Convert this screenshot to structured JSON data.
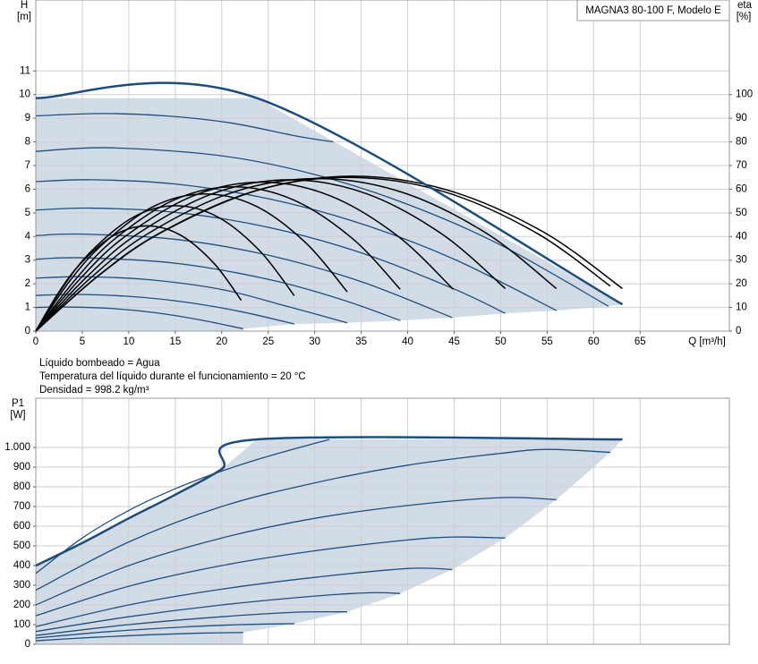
{
  "notes": [
    "Líquido bombeado = Agua",
    "Temperatura del líquido durante el funcionamiento = 20 °C",
    "Densidad = 998.2 kg/m³"
  ],
  "chart_data": [
    {
      "type": "line",
      "title": "MAGNA3 80-100 F, Modelo E",
      "y_label": "H",
      "y_unit": "[m]",
      "y2_label": "eta",
      "y2_unit": "[%]",
      "x_label": "Q [m³/h]",
      "xlim": [
        0,
        74.6
      ],
      "xticks": [
        0,
        5,
        10,
        15,
        20,
        25,
        30,
        35,
        40,
        45,
        50,
        55,
        60,
        65
      ],
      "ylim": [
        0,
        14
      ],
      "yticks": [
        0,
        1,
        2,
        3,
        4,
        5,
        6,
        7,
        8,
        9,
        10,
        11
      ],
      "y2lim": [
        0,
        140
      ],
      "y2ticks": [
        0,
        10,
        20,
        30,
        40,
        50,
        60,
        70,
        80,
        90,
        100
      ],
      "grid": true,
      "envelope": {
        "color": "#1c4d7c",
        "fill": "#d1dce7",
        "x": [
          0,
          23.8,
          63.1
        ],
        "values": [
          9.85,
          9.85,
          1.13
        ]
      },
      "series": [
        {
          "color": "#1f4f7f",
          "x": [
            0,
            7,
            14,
            21,
            28,
            32
          ],
          "values": [
            9.1,
            9.2,
            9.1,
            8.8,
            8.25,
            8.0
          ]
        },
        {
          "color": "#1f4f7f",
          "x": [
            0,
            8,
            20,
            30,
            40,
            50,
            61.6
          ],
          "values": [
            7.6,
            7.75,
            7.41,
            6.62,
            5.36,
            3.64,
            1.05
          ]
        },
        {
          "color": "#1f4f7f",
          "x": [
            0,
            6,
            15,
            25,
            35,
            45,
            56
          ],
          "values": [
            6.32,
            6.4,
            6.22,
            5.6,
            4.54,
            3.04,
            0.87
          ]
        },
        {
          "color": "#1f4f7f",
          "x": [
            0,
            6,
            15,
            25,
            35,
            45,
            50.5
          ],
          "values": [
            5.12,
            5.2,
            5.02,
            4.39,
            3.31,
            1.78,
            0.75
          ]
        },
        {
          "color": "#1f4f7f",
          "x": [
            0,
            5,
            15,
            25,
            35,
            44.8
          ],
          "values": [
            4.04,
            4.1,
            3.88,
            3.21,
            2.09,
            0.57
          ]
        },
        {
          "color": "#1f4f7f",
          "x": [
            0,
            5,
            15,
            25,
            33,
            39.2
          ],
          "values": [
            3.04,
            3.1,
            2.87,
            2.19,
            1.32,
            0.45
          ]
        },
        {
          "color": "#1f4f7f",
          "x": [
            0,
            5,
            12,
            20,
            27,
            33.5
          ],
          "values": [
            2.24,
            2.3,
            2.18,
            1.76,
            1.05,
            0.35
          ]
        },
        {
          "color": "#1f4f7f",
          "x": [
            0,
            4,
            10,
            16,
            22,
            27.8
          ],
          "values": [
            1.51,
            1.55,
            1.47,
            1.23,
            0.83,
            0.3
          ]
        },
        {
          "color": "#1f4f7f",
          "x": [
            0,
            3,
            8,
            13,
            18,
            22.3
          ],
          "values": [
            1.0,
            1.02,
            0.96,
            0.77,
            0.45,
            0.1
          ]
        },
        {
          "color": "#000000",
          "axis": "y2",
          "x": [
            0,
            2.4,
            4.8,
            8.4,
            12,
            15.6,
            19.2,
            22.1
          ],
          "values": [
            0,
            16,
            28.5,
            40.5,
            44.5,
            40.5,
            28.5,
            13
          ]
        },
        {
          "color": "#000000",
          "axis": "y2",
          "x": [
            0,
            3,
            6,
            10.5,
            15,
            19.6,
            24.1,
            27.8
          ],
          "values": [
            0,
            19.1,
            33.9,
            48.2,
            53,
            48.2,
            33.9,
            15
          ]
        },
        {
          "color": "#000000",
          "axis": "y2",
          "x": [
            0,
            3.6,
            7.3,
            12.7,
            18.2,
            23.7,
            29.1,
            33.5
          ],
          "values": [
            0,
            20.9,
            37.1,
            52.8,
            58,
            52.8,
            37.1,
            16.6
          ]
        },
        {
          "color": "#000000",
          "axis": "y2",
          "x": [
            0,
            4.3,
            8.5,
            14.9,
            21.3,
            27.7,
            34.1,
            39.2
          ],
          "values": [
            0,
            22,
            39,
            55.5,
            61,
            55.5,
            39,
            17.7
          ]
        },
        {
          "color": "#000000",
          "axis": "y2",
          "x": [
            0,
            4.9,
            9.7,
            17,
            24.3,
            31.6,
            38.9,
            44.9
          ],
          "values": [
            0,
            22.7,
            40.3,
            57.3,
            63,
            57.3,
            40.3,
            17.7
          ]
        },
        {
          "color": "#000000",
          "axis": "y2",
          "x": [
            0,
            5.5,
            10.9,
            19.1,
            27.3,
            35.5,
            43.7,
            50.5
          ],
          "values": [
            0,
            23,
            41,
            58.2,
            64,
            58.2,
            41,
            18
          ]
        },
        {
          "color": "#000000",
          "axis": "y2",
          "x": [
            0,
            6.1,
            12.1,
            21.2,
            30.3,
            39.4,
            48.5,
            56
          ],
          "values": [
            0,
            23.2,
            41.3,
            58.7,
            64.5,
            58.7,
            41.3,
            18
          ]
        },
        {
          "color": "#000000",
          "axis": "y2",
          "x": [
            0,
            6.7,
            13.4,
            23.5,
            33.6,
            43.7,
            53.8,
            61.8
          ],
          "values": [
            0,
            23.4,
            41.6,
            59.2,
            65,
            59.2,
            41.6,
            19
          ]
        },
        {
          "color": "#000000",
          "axis": "y2",
          "x": [
            0,
            6.8,
            13.6,
            23.9,
            34.1,
            44.3,
            54.6,
            63.1
          ],
          "values": [
            0,
            23.6,
            41.9,
            59.6,
            65.5,
            59.6,
            41.9,
            18
          ]
        }
      ]
    },
    {
      "type": "line",
      "y_label": "P1",
      "y_unit": "[W]",
      "xlim": [
        0,
        74.6
      ],
      "ylim": [
        0,
        1250
      ],
      "yticks": [
        0,
        100,
        200,
        300,
        400,
        500,
        600,
        700,
        800,
        900,
        {
          "value": 1000,
          "label": "1.000"
        }
      ],
      "grid": true,
      "envelope": {
        "color": "#1c4d7c",
        "fill": "#d1dce7",
        "x": [
          0,
          5,
          10,
          15,
          20,
          23.8,
          63.1
        ],
        "values": [
          400,
          515,
          640,
          760,
          890,
          1041,
          1041
        ]
      },
      "series": [
        {
          "color": "#1f4f7f",
          "x": [
            0,
            5,
            10,
            15,
            20,
            25,
            31.6
          ],
          "values": [
            360,
            540,
            680,
            790,
            880,
            955,
            1041
          ]
        },
        {
          "color": "#1f4f7f",
          "x": [
            0,
            10,
            20,
            30,
            40,
            50,
            55,
            61.8
          ],
          "values": [
            275,
            520,
            700,
            820,
            910,
            970,
            990,
            975
          ]
        },
        {
          "color": "#1f4f7f",
          "x": [
            0,
            10,
            20,
            30,
            40,
            50,
            56
          ],
          "values": [
            200,
            400,
            540,
            640,
            705,
            745,
            735
          ]
        },
        {
          "color": "#1f4f7f",
          "x": [
            0,
            10,
            20,
            30,
            40,
            45,
            50.5
          ],
          "values": [
            145,
            295,
            400,
            475,
            530,
            545,
            540
          ]
        },
        {
          "color": "#1f4f7f",
          "x": [
            0,
            10,
            20,
            30,
            40,
            44.8
          ],
          "values": [
            90,
            200,
            280,
            340,
            385,
            380
          ]
        },
        {
          "color": "#1f4f7f",
          "x": [
            0,
            10,
            20,
            30,
            36,
            39.2
          ],
          "values": [
            65,
            140,
            200,
            245,
            262,
            258
          ]
        },
        {
          "color": "#1f4f7f",
          "x": [
            0,
            10,
            20,
            28,
            33.5
          ],
          "values": [
            45,
            100,
            140,
            163,
            165
          ]
        },
        {
          "color": "#1f4f7f",
          "x": [
            0,
            8,
            16,
            22,
            27.8
          ],
          "values": [
            32,
            65,
            88,
            100,
            105
          ]
        },
        {
          "color": "#1f4f7f",
          "x": [
            0,
            6,
            12,
            18,
            22.3
          ],
          "values": [
            18,
            35,
            48,
            57,
            60
          ]
        }
      ]
    }
  ]
}
